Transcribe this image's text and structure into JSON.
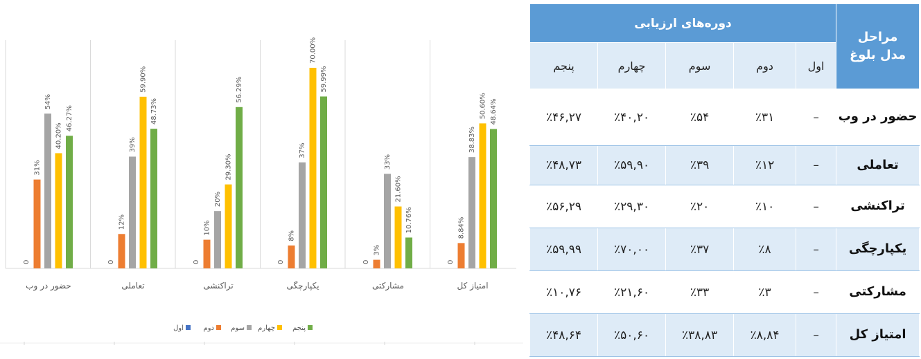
{
  "chart_data": {
    "type": "bar",
    "categories": [
      "حضور در وب",
      "تعاملی",
      "تراکنشی",
      "یکپارچگی",
      "مشارکتی",
      "امتیاز کل"
    ],
    "series": [
      {
        "name": "اول",
        "color": "#4472c4",
        "values": [
          0,
          0,
          0,
          0,
          0,
          0
        ],
        "labels": [
          "0",
          "0",
          "0",
          "0",
          "0",
          "0"
        ]
      },
      {
        "name": "دوم",
        "color": "#ed7d31",
        "values": [
          31,
          12,
          10,
          8,
          3,
          8.84
        ],
        "labels": [
          "31%",
          "12%",
          "10%",
          "8%",
          "3%",
          "8.84%"
        ]
      },
      {
        "name": "سوم",
        "color": "#a5a5a5",
        "values": [
          54,
          39,
          20,
          37,
          33,
          38.83
        ],
        "labels": [
          "54%",
          "39%",
          "20%",
          "37%",
          "33%",
          "38.83%"
        ]
      },
      {
        "name": "چهارم",
        "color": "#ffc000",
        "values": [
          40.2,
          59.9,
          29.3,
          70.0,
          21.6,
          50.6
        ],
        "labels": [
          "40.20%",
          "59.90%",
          "29.30%",
          "70.00%",
          "21.60%",
          "50.60%"
        ]
      },
      {
        "name": "پنجم",
        "color": "#70ad47",
        "values": [
          46.27,
          48.73,
          56.29,
          59.99,
          10.76,
          48.64
        ],
        "labels": [
          "46.27%",
          "48.73%",
          "56.29%",
          "59.99%",
          "10.76%",
          "48.64%"
        ]
      }
    ],
    "ylim": [
      0,
      70
    ],
    "legend_position": "bottom",
    "grid": "vertical separators between categories"
  },
  "table": {
    "stage_header": [
      "مراحل",
      "مدل بلوغ"
    ],
    "periods_header": "دوره‌های ارزیابی",
    "period_columns": [
      "اول",
      "دوم",
      "سوم",
      "چهارم",
      "پنجم"
    ],
    "rows": [
      {
        "label": "حضور در وب",
        "cells": [
          "–",
          "٪۳۱",
          "٪۵۴",
          "٪۴۰,۲۰",
          "٪۴۶,۲۷"
        ]
      },
      {
        "label": "تعاملی",
        "cells": [
          "–",
          "٪۱۲",
          "٪۳۹",
          "٪۵۹,۹۰",
          "٪۴۸,۷۳"
        ]
      },
      {
        "label": "تراکنشی",
        "cells": [
          "–",
          "٪۱۰",
          "٪۲۰",
          "٪۲۹,۳۰",
          "٪۵۶,۲۹"
        ]
      },
      {
        "label": "یکپارچگی",
        "cells": [
          "–",
          "٪۸",
          "٪۳۷",
          "٪۷۰,۰۰",
          "٪۵۹,۹۹"
        ]
      },
      {
        "label": "مشارکتی",
        "cells": [
          "–",
          "٪۳",
          "٪۳۳",
          "٪۲۱,۶۰",
          "٪۱۰,۷۶"
        ]
      },
      {
        "label": "امتیاز کل",
        "cells": [
          "–",
          "٪۸,۸۴",
          "٪۳۸,۸۳",
          "٪۵۰,۶۰",
          "٪۴۸,۶۴"
        ]
      }
    ]
  }
}
